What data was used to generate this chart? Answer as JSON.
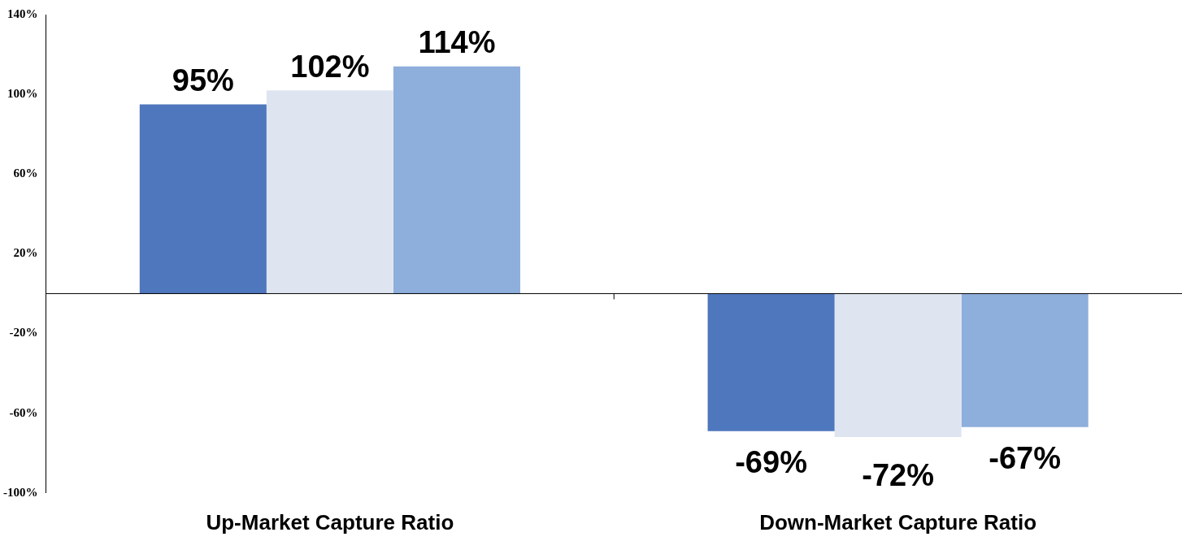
{
  "chart_data": {
    "type": "bar",
    "categories": [
      "Up-Market Capture Ratio",
      "Down-Market Capture Ratio"
    ],
    "series": [
      {
        "color": "#4f77be",
        "values": [
          95,
          -69
        ],
        "value_labels": [
          "95%",
          "-69%"
        ]
      },
      {
        "color": "#dfe5f0",
        "values": [
          102,
          -72
        ],
        "value_labels": [
          "102%",
          "-72%"
        ]
      },
      {
        "color": "#8eaedb",
        "values": [
          114,
          -67
        ],
        "value_labels": [
          "114%",
          "-67%"
        ]
      }
    ],
    "ylim": [
      -100,
      140
    ],
    "yticks": [
      {
        "value": -100,
        "label": "-100%"
      },
      {
        "value": -60,
        "label": "-60%"
      },
      {
        "value": -20,
        "label": "-20%"
      },
      {
        "value": 20,
        "label": "20%"
      },
      {
        "value": 60,
        "label": "60%"
      },
      {
        "value": 100,
        "label": "100%"
      },
      {
        "value": 140,
        "label": "140%"
      }
    ],
    "grid": false,
    "legend": false
  }
}
